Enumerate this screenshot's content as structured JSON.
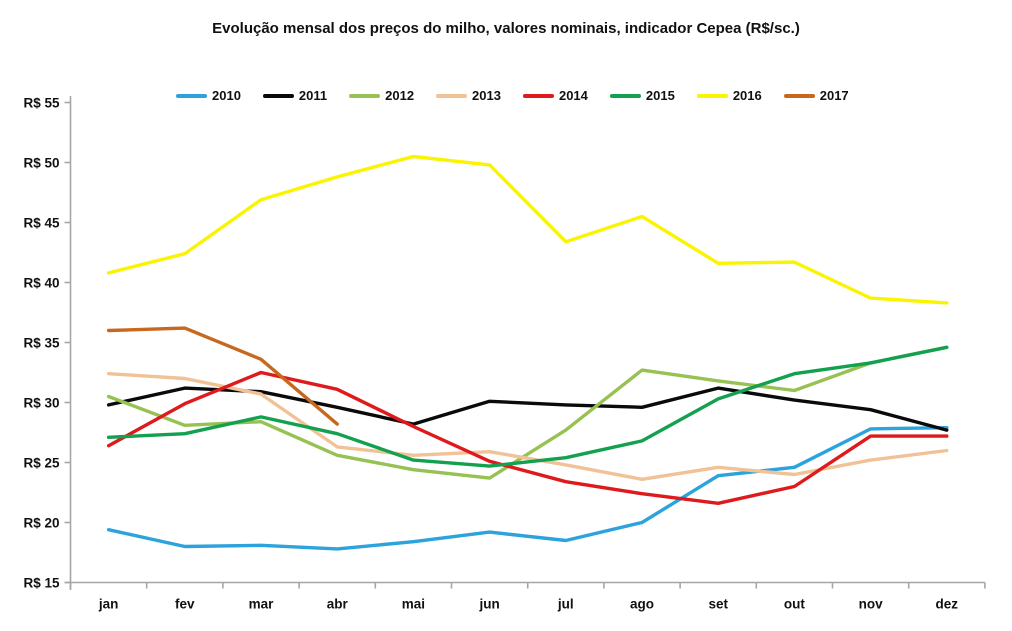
{
  "title": "Evolução mensal dos preços do milho, valores nominais, indicador Cepea (R$/sc.)",
  "axis_color": "#A6A6A6",
  "chart_data": {
    "type": "line",
    "title": "Evolução mensal dos preços do milho, valores nominais, indicador Cepea (R$/sc.)",
    "xlabel": "",
    "ylabel": "",
    "ylim": [
      15,
      55
    ],
    "y_tick_step": 5,
    "y_tick_prefix": "R$ ",
    "y_tick_labels": [
      "R$ 55",
      "R$ 50",
      "R$ 45",
      "R$ 40",
      "R$ 35",
      "R$ 30",
      "R$ 25",
      "R$ 20",
      "R$ 15"
    ],
    "grid": false,
    "legend_position": "top",
    "categories": [
      "jan",
      "fev",
      "mar",
      "abr",
      "mai",
      "jun",
      "jul",
      "ago",
      "set",
      "out",
      "nov",
      "dez"
    ],
    "series": [
      {
        "name": "2010",
        "color": "#2CA3DC",
        "values": [
          19.4,
          18.0,
          18.1,
          17.8,
          18.4,
          19.2,
          18.5,
          20.0,
          23.9,
          24.6,
          27.8,
          27.9
        ]
      },
      {
        "name": "2011",
        "color": "#0A0A0A",
        "values": [
          29.8,
          31.2,
          30.9,
          29.6,
          28.2,
          30.1,
          29.8,
          29.6,
          31.2,
          30.2,
          29.4,
          27.7
        ]
      },
      {
        "name": "2012",
        "color": "#97C153",
        "values": [
          30.5,
          28.1,
          28.4,
          25.6,
          24.4,
          23.7,
          27.7,
          32.7,
          31.8,
          31.0,
          33.3,
          34.6
        ]
      },
      {
        "name": "2013",
        "color": "#F0C296",
        "values": [
          32.4,
          32.0,
          30.7,
          26.3,
          25.6,
          25.9,
          24.8,
          23.6,
          24.6,
          24.0,
          25.2,
          26.0
        ]
      },
      {
        "name": "2014",
        "color": "#DF1A1C",
        "values": [
          26.4,
          29.9,
          32.5,
          31.1,
          28.0,
          25.1,
          23.4,
          22.4,
          21.6,
          23.0,
          27.2,
          27.2
        ]
      },
      {
        "name": "2015",
        "color": "#13A04F",
        "values": [
          27.1,
          27.4,
          28.8,
          27.4,
          25.2,
          24.7,
          25.4,
          26.8,
          30.3,
          32.4,
          33.3,
          34.6
        ]
      },
      {
        "name": "2016",
        "color": "#FAF400",
        "values": [
          40.8,
          42.4,
          46.9,
          48.8,
          50.5,
          49.8,
          43.4,
          45.5,
          41.6,
          41.7,
          38.7,
          38.3
        ]
      },
      {
        "name": "2017",
        "color": "#C8681E",
        "values": [
          36.0,
          36.2,
          33.6,
          28.2,
          null,
          null,
          null,
          null,
          null,
          null,
          null,
          null
        ]
      }
    ]
  }
}
